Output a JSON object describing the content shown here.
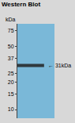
{
  "chart_data": {
    "type": "band",
    "title": "Western Blot",
    "ylabel": "kDa",
    "values": [
      31
    ],
    "color": "#222222",
    "annotation": "← 31kDa",
    "log": "y",
    "ylim": [
      8,
      90
    ],
    "yticks": [
      10,
      15,
      20,
      25,
      37,
      50,
      75
    ]
  }
}
